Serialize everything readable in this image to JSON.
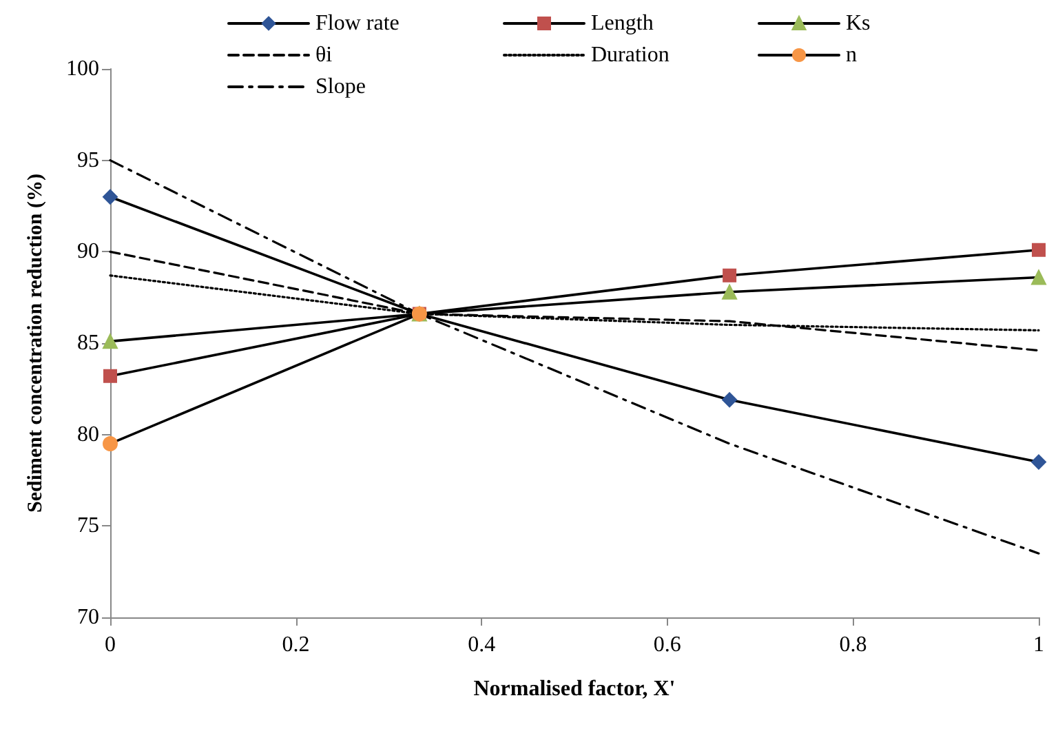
{
  "chart_data": {
    "type": "line",
    "xlabel": "Normalised factor, X'",
    "ylabel": "Sediment concentration reduction (%)",
    "xlim": [
      0,
      1
    ],
    "xticks": [
      0,
      0.2,
      0.4,
      0.6,
      0.8,
      1
    ],
    "ylim": [
      70,
      100
    ],
    "yticks": [
      70,
      75,
      80,
      85,
      90,
      95,
      100
    ],
    "x": [
      0,
      0.333,
      0.667,
      1
    ],
    "grid": false,
    "legend": "top",
    "series": [
      {
        "name": "Flow rate",
        "color": "#2f5597",
        "marker": "diamond",
        "line_style": "solid",
        "values": [
          93,
          86.6,
          81.9,
          78.5
        ]
      },
      {
        "name": "Length",
        "color": "#c0504d",
        "marker": "square",
        "line_style": "solid",
        "values": [
          83.2,
          86.6,
          88.7,
          90.1
        ]
      },
      {
        "name": "Ks",
        "color": "#9bbb59",
        "marker": "triangle",
        "line_style": "solid",
        "values": [
          85.1,
          86.6,
          87.8,
          88.6
        ]
      },
      {
        "name": "θi",
        "color": "#000000",
        "marker": "none",
        "line_style": "dashed",
        "values": [
          90,
          86.6,
          86.2,
          84.6
        ]
      },
      {
        "name": "Duration",
        "color": "#000000",
        "marker": "none",
        "line_style": "dotted",
        "values": [
          88.7,
          86.6,
          86,
          85.7
        ]
      },
      {
        "name": "n",
        "color": "#f79646",
        "marker": "circle",
        "line_style": "solid",
        "values": [
          79.5,
          86.6,
          null,
          null
        ]
      },
      {
        "name": "Slope",
        "color": "#000000",
        "marker": "none",
        "line_style": "dashdot",
        "values": [
          95,
          86.6,
          79.5,
          73.5
        ]
      }
    ]
  }
}
